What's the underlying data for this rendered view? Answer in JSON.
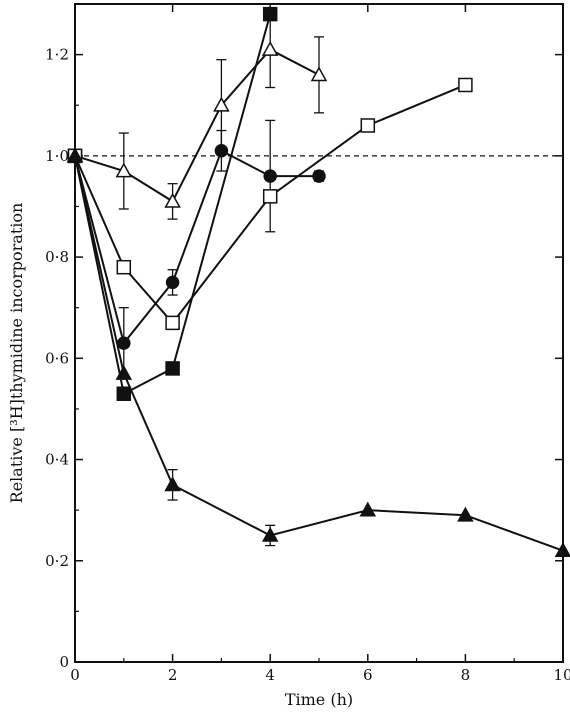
{
  "chart_data": {
    "type": "line",
    "xlabel": "Time (h)",
    "ylabel": "Relative [³H]thymidine incorporation",
    "xlim": [
      0,
      10
    ],
    "ylim": [
      0,
      1.3
    ],
    "x_ticks": [
      0,
      2,
      4,
      6,
      8,
      10
    ],
    "x_tick_labels": [
      "0",
      "2",
      "4",
      "6",
      "8",
      "10"
    ],
    "y_ticks": [
      0,
      0.2,
      0.4,
      0.6,
      0.8,
      1.0,
      1.2
    ],
    "y_tick_labels": [
      "0",
      "0·2",
      "0·4",
      "0·6",
      "0·8",
      "1·0",
      "1·2"
    ],
    "reference_line": {
      "y": 1.0,
      "style": "dashed"
    },
    "grid": false,
    "series": [
      {
        "marker": "open-triangle",
        "x": [
          0,
          1,
          2,
          3,
          4,
          5
        ],
        "y": [
          1.0,
          0.97,
          0.91,
          1.1,
          1.21,
          1.16
        ],
        "error": [
          0,
          0.075,
          0.035,
          0.09,
          0.075,
          0.075
        ]
      },
      {
        "marker": "filled-square",
        "x": [
          0,
          1,
          2,
          4
        ],
        "y": [
          1.0,
          0.53,
          0.58,
          1.28
        ],
        "error": [
          0,
          0,
          0,
          0
        ]
      },
      {
        "marker": "filled-circle",
        "x": [
          0,
          1,
          2,
          3,
          4,
          5
        ],
        "y": [
          1.0,
          0.63,
          0.75,
          1.01,
          0.96,
          0.96
        ],
        "error": [
          0,
          0.07,
          0.025,
          0.04,
          0.11,
          0.01
        ]
      },
      {
        "marker": "open-square",
        "x": [
          0,
          1,
          2,
          4,
          6,
          8
        ],
        "y": [
          1.0,
          0.78,
          0.67,
          0.92,
          1.06,
          1.14
        ],
        "error": [
          0,
          0,
          0,
          0,
          0,
          0
        ]
      },
      {
        "marker": "filled-triangle",
        "x": [
          0,
          1,
          2,
          4,
          6,
          8,
          10
        ],
        "y": [
          1.0,
          0.57,
          0.35,
          0.25,
          0.3,
          0.29,
          0.22
        ],
        "error": [
          0,
          0,
          0.03,
          0.02,
          0,
          0,
          0
        ]
      }
    ]
  }
}
